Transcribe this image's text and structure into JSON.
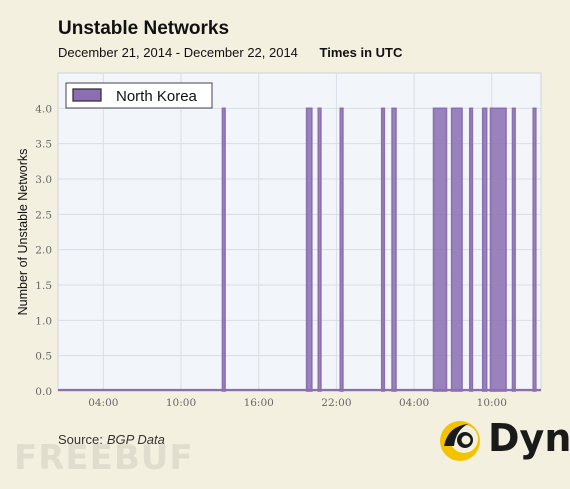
{
  "header": {
    "title": "Unstable Networks",
    "date_range": "December 21, 2014 - December 22, 2014",
    "timezone": "Times in UTC"
  },
  "footer": {
    "source_label": "Source:",
    "source_name": "BGP Data",
    "brand": "Dyn",
    "watermark": "FREEBUF"
  },
  "colors": {
    "series": "#8b70b1",
    "series_fill": "#8b6fb2",
    "plot_bg": "#f2f5fa",
    "grid": "#d9dee6",
    "axis_text": "#666666"
  },
  "chart_data": {
    "type": "area",
    "title": "Unstable Networks",
    "xlabel": "",
    "ylabel": "Number of Unstable Networks",
    "x_tick_labels": [
      "04:00",
      "10:00",
      "16:00",
      "22:00",
      "04:00",
      "10:00"
    ],
    "x_tick_hours": [
      4,
      10,
      16,
      22,
      28,
      34
    ],
    "xlim_hours": [
      0.5,
      37.8
    ],
    "ylim": [
      0,
      4.5
    ],
    "y_ticks": [
      0.0,
      0.5,
      1.0,
      1.5,
      2.0,
      2.5,
      3.0,
      3.5,
      4.0
    ],
    "grid": true,
    "legend_position": "top-left",
    "series": [
      {
        "name": "North Korea",
        "baseline": 0,
        "spikes": [
          {
            "start": 13.2,
            "end": 13.4,
            "value": 4
          },
          {
            "start": 19.7,
            "end": 20.1,
            "value": 4
          },
          {
            "start": 20.6,
            "end": 20.8,
            "value": 4
          },
          {
            "start": 22.3,
            "end": 22.5,
            "value": 4
          },
          {
            "start": 25.5,
            "end": 25.7,
            "value": 4
          },
          {
            "start": 26.3,
            "end": 26.6,
            "value": 4
          },
          {
            "start": 29.5,
            "end": 30.5,
            "value": 4
          },
          {
            "start": 30.9,
            "end": 31.7,
            "value": 4
          },
          {
            "start": 32.3,
            "end": 32.5,
            "value": 4
          },
          {
            "start": 33.3,
            "end": 33.6,
            "value": 4
          },
          {
            "start": 33.9,
            "end": 35.1,
            "value": 4
          },
          {
            "start": 35.6,
            "end": 35.8,
            "value": 4
          },
          {
            "start": 37.2,
            "end": 37.4,
            "value": 4
          }
        ]
      }
    ]
  }
}
